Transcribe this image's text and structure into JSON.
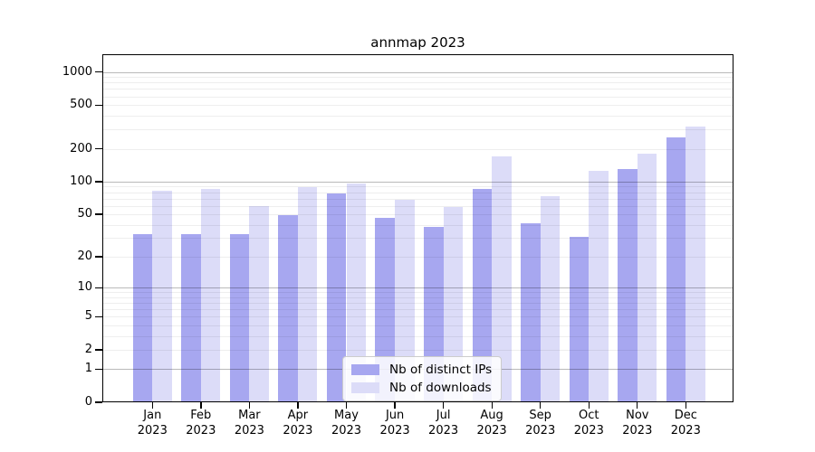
{
  "title": "annmap 2023",
  "chart_data": {
    "type": "bar",
    "title": "annmap 2023",
    "yscale": "log1p",
    "ylim": [
      0,
      1448
    ],
    "yticks": [
      0,
      1,
      2,
      5,
      10,
      20,
      50,
      100,
      200,
      500,
      1000
    ],
    "grid": {
      "major_lines": [
        1,
        10,
        100,
        1000
      ],
      "minor_multipliers": [
        2,
        3,
        4,
        5,
        6,
        7,
        8,
        9
      ],
      "drawn_over_bars": true
    },
    "categories": [
      {
        "month": "Jan",
        "year": "2023"
      },
      {
        "month": "Feb",
        "year": "2023"
      },
      {
        "month": "Mar",
        "year": "2023"
      },
      {
        "month": "Apr",
        "year": "2023"
      },
      {
        "month": "May",
        "year": "2023"
      },
      {
        "month": "Jun",
        "year": "2023"
      },
      {
        "month": "Jul",
        "year": "2023"
      },
      {
        "month": "Aug",
        "year": "2023"
      },
      {
        "month": "Sep",
        "year": "2023"
      },
      {
        "month": "Oct",
        "year": "2023"
      },
      {
        "month": "Nov",
        "year": "2023"
      },
      {
        "month": "Dec",
        "year": "2023"
      }
    ],
    "series": [
      {
        "name": "Nb of distinct IPs",
        "color": "#a7a7f0",
        "values": [
          33,
          33,
          33,
          49,
          78,
          46,
          38,
          86,
          41,
          31,
          131,
          252
        ]
      },
      {
        "name": "Nb of downloads",
        "color": "#dcdcf8",
        "values": [
          82,
          86,
          59,
          89,
          97,
          68,
          58,
          170,
          73,
          125,
          180,
          317
        ]
      }
    ],
    "legend_position": "lower center"
  },
  "colors": {
    "background": "#ffffff",
    "spine": "#000000",
    "major_grid": "#bababa",
    "minor_grid": "#ececec",
    "bar_dark": "#a7a7f0",
    "bar_light": "#dcdcf8",
    "legend_border": "#cccccc"
  }
}
